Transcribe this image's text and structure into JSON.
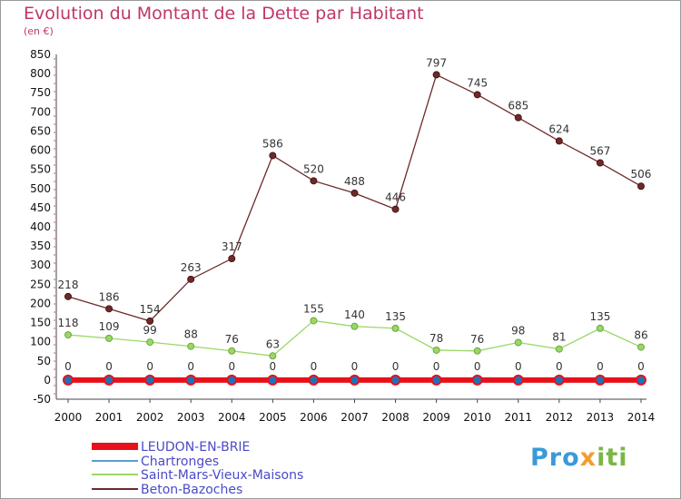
{
  "title": "Evolution du Montant de la Dette par Habitant",
  "unit": "(en €)",
  "logo": "Proxiti",
  "chart_data": {
    "type": "line",
    "x": [
      "2000",
      "2001",
      "2002",
      "2003",
      "2004",
      "2005",
      "2006",
      "2007",
      "2008",
      "2009",
      "2010",
      "2011",
      "2012",
      "2013",
      "2014"
    ],
    "ylim": [
      -50,
      850
    ],
    "yticks": [
      -50,
      0,
      50,
      100,
      150,
      200,
      250,
      300,
      350,
      400,
      450,
      500,
      550,
      600,
      650,
      700,
      750,
      800,
      850
    ],
    "grid": false,
    "legend_position": "bottom-left",
    "series": [
      {
        "name": "LEUDON-EN-BRIE",
        "color": "#e8101a",
        "values": [
          0,
          0,
          0,
          0,
          0,
          0,
          0,
          0,
          0,
          0,
          0,
          0,
          0,
          0,
          0
        ]
      },
      {
        "name": "Chartronges",
        "color": "#5b9bd5",
        "values": [
          0,
          0,
          0,
          0,
          0,
          0,
          0,
          0,
          0,
          0,
          0,
          0,
          0,
          0,
          0
        ]
      },
      {
        "name": "Saint-Mars-Vieux-Maisons",
        "color": "#9ad766",
        "values": [
          118,
          109,
          99,
          88,
          76,
          63,
          155,
          140,
          135,
          78,
          76,
          98,
          81,
          135,
          86
        ]
      },
      {
        "name": "Beton-Bazoches",
        "color": "#6e2a2a",
        "values": [
          218,
          186,
          154,
          263,
          317,
          586,
          520,
          488,
          446,
          797,
          745,
          685,
          624,
          567,
          506
        ]
      }
    ]
  }
}
